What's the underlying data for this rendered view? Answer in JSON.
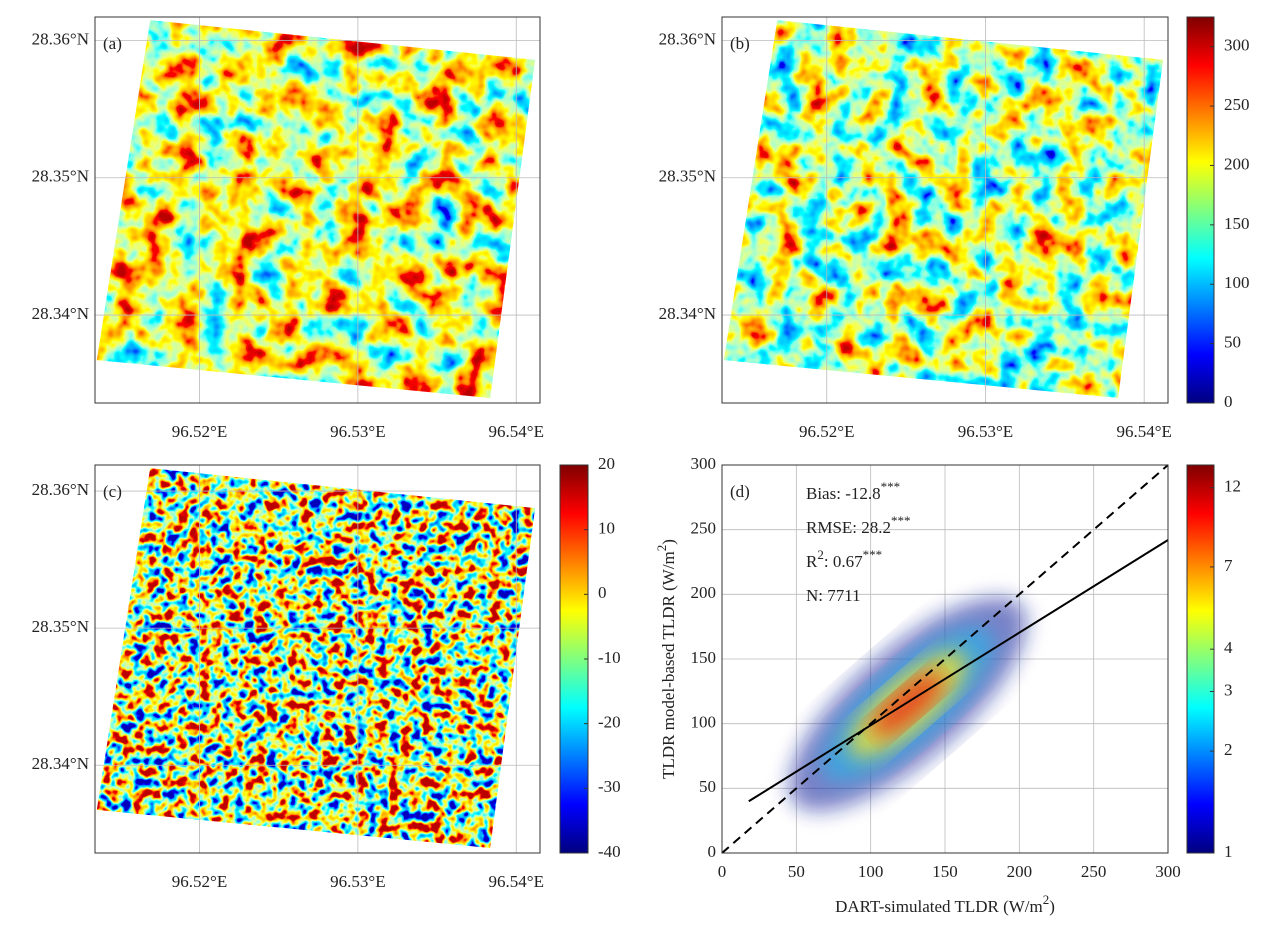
{
  "chart_data": [
    {
      "type": "map",
      "panel_label": "(a)",
      "xlim": [
        96.5134,
        96.5415
      ],
      "ylim": [
        28.3336,
        28.3617
      ],
      "xticks": [
        {
          "value": 96.52,
          "label": "96.52°E"
        },
        {
          "value": 96.53,
          "label": "96.53°E"
        },
        {
          "value": 96.54,
          "label": "96.54°E"
        }
      ],
      "yticks": [
        {
          "value": 28.34,
          "label": "28.34°N"
        },
        {
          "value": 28.35,
          "label": "28.35°N"
        },
        {
          "value": 28.36,
          "label": "28.36°N"
        }
      ],
      "grid": true
    },
    {
      "type": "map",
      "panel_label": "(b)",
      "xlim": [
        96.5134,
        96.5415
      ],
      "ylim": [
        28.3336,
        28.3617
      ],
      "xticks": [
        {
          "value": 96.52,
          "label": "96.52°E"
        },
        {
          "value": 96.53,
          "label": "96.53°E"
        },
        {
          "value": 96.54,
          "label": "96.54°E"
        }
      ],
      "yticks": [
        {
          "value": 28.34,
          "label": "28.34°N"
        },
        {
          "value": 28.35,
          "label": "28.35°N"
        },
        {
          "value": 28.36,
          "label": "28.36°N"
        }
      ],
      "grid": true,
      "colorbar": {
        "colormap": "jet",
        "lim": [
          0,
          325
        ],
        "ticks": [
          0,
          50,
          100,
          150,
          200,
          250,
          300
        ]
      }
    },
    {
      "type": "map",
      "panel_label": "(c)",
      "xlim": [
        96.5134,
        96.5415
      ],
      "ylim": [
        28.3336,
        28.3619
      ],
      "xticks": [
        {
          "value": 96.52,
          "label": "96.52°E"
        },
        {
          "value": 96.53,
          "label": "96.53°E"
        },
        {
          "value": 96.54,
          "label": "96.54°E"
        }
      ],
      "yticks": [
        {
          "value": 28.34,
          "label": "28.34°N"
        },
        {
          "value": 28.35,
          "label": "28.35°N"
        },
        {
          "value": 28.36,
          "label": "28.36°N"
        }
      ],
      "grid": true,
      "colorbar": {
        "colormap": "jet",
        "lim": [
          -40,
          20
        ],
        "ticks": [
          -40,
          -30,
          -20,
          -10,
          0,
          10,
          20
        ]
      }
    },
    {
      "type": "density_scatter",
      "panel_label": "(d)",
      "xlabel": [
        "DART-simulated TLDR (W/m",
        "2",
        ")"
      ],
      "ylabel": [
        "TLDR model-based TLDR (W/m",
        "2",
        ")"
      ],
      "xlim": [
        0,
        300
      ],
      "ylim": [
        0,
        300
      ],
      "xticks": [
        0,
        50,
        100,
        150,
        200,
        250,
        300
      ],
      "yticks": [
        0,
        50,
        100,
        150,
        200,
        250,
        300
      ],
      "grid": true,
      "annotations": [
        [
          "Bias: -12.8",
          "***"
        ],
        [
          "RMSE: 28.2",
          "***"
        ],
        [
          "R",
          "2",
          ": 0.67",
          "***"
        ],
        [
          "N: 7711"
        ]
      ],
      "one_to_one_line": {
        "x": [
          0,
          300
        ],
        "y": [
          0,
          300
        ]
      },
      "fit_line": {
        "x": [
          18,
          300
        ],
        "y": [
          40,
          242
        ]
      },
      "colorbar": {
        "colormap": "jet",
        "log": true,
        "lim": [
          1,
          14
        ],
        "ticks": [
          1,
          2,
          3,
          4,
          7,
          12
        ]
      }
    }
  ]
}
